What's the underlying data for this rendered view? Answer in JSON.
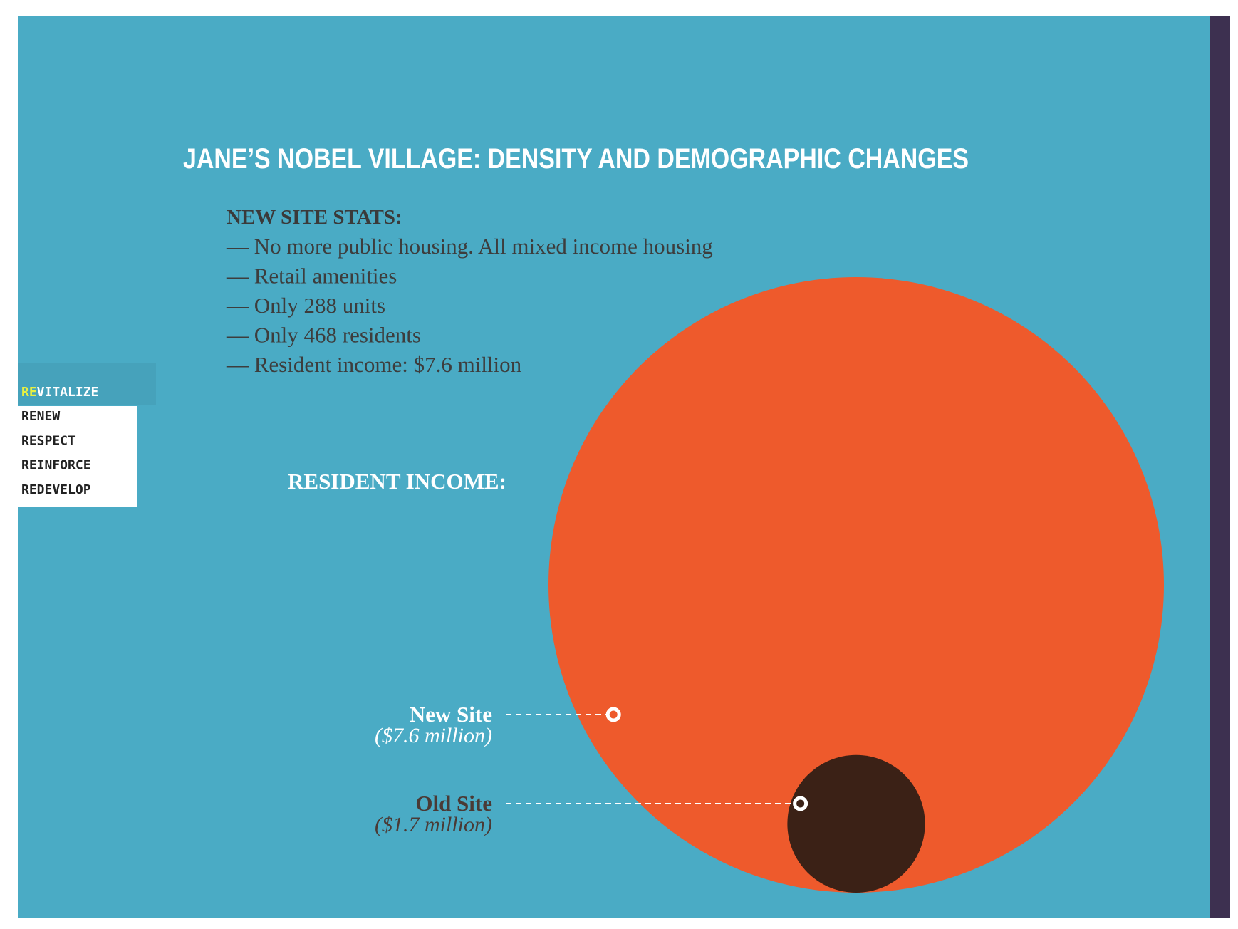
{
  "slide": {
    "title": "JANE’S NOBEL VILLAGE: DENSITY AND DEMOGRAPHIC CHANGES",
    "stats_heading": "NEW SITE STATS:",
    "stats": [
      "— No more public housing. All mixed income housing",
      "— Retail amenities",
      "— Only 288 units",
      "— Only 468 residents",
      "— Resident income: $7.6 million"
    ],
    "nav": [
      "REVITALIZE",
      "RENEW",
      "RESPECT",
      "REINFORCE",
      "REDEVELOP"
    ]
  },
  "chart_data": {
    "type": "bubble",
    "title": "RESIDENT INCOME:",
    "categories": [
      "New Site",
      "Old Site"
    ],
    "values": [
      7.6,
      1.7
    ],
    "value_labels": [
      "($7.6 million)",
      "($1.7 million)"
    ],
    "colors": [
      "#ee5a2c",
      "#3b2116"
    ]
  }
}
